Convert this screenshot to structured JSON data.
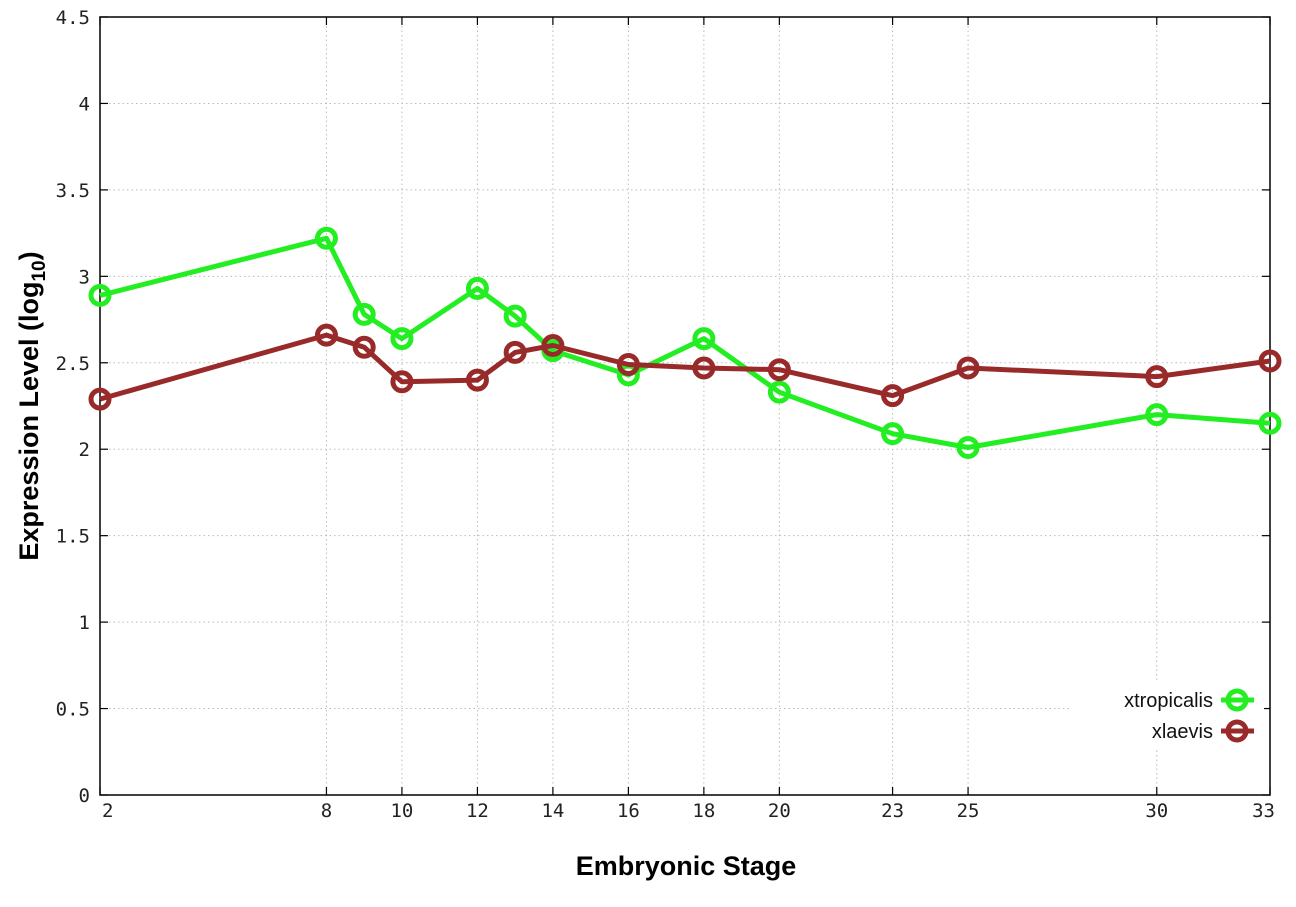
{
  "chart_data": {
    "type": "line",
    "xlabel": "Embryonic Stage",
    "ylabel": "Expression Level (log",
    "ylabel_sub": "10",
    "ylabel_end": ")",
    "x": [
      2,
      8,
      9,
      10,
      12,
      13,
      14,
      16,
      18,
      20,
      23,
      25,
      30,
      33
    ],
    "xticks": [
      2,
      8,
      10,
      12,
      14,
      16,
      18,
      20,
      23,
      25,
      30,
      33
    ],
    "xlim": [
      2,
      33
    ],
    "ylim": [
      0,
      4.5
    ],
    "yticks": [
      "0",
      "0.5",
      "1",
      "1.5",
      "2",
      "2.5",
      "3",
      "3.5",
      "4",
      "4.5"
    ],
    "grid": true,
    "legend_position": "bottom-right",
    "series": [
      {
        "name": "xtropicalis",
        "color": "#22ee22",
        "values": [
          2.89,
          3.22,
          2.78,
          2.64,
          2.93,
          2.77,
          2.57,
          2.43,
          2.64,
          2.33,
          2.09,
          2.01,
          2.2,
          2.15
        ]
      },
      {
        "name": "xlaevis",
        "color": "#992a2a",
        "values": [
          2.29,
          2.66,
          2.59,
          2.39,
          2.4,
          2.56,
          2.6,
          2.49,
          2.47,
          2.46,
          2.31,
          2.47,
          2.42,
          2.51
        ]
      }
    ]
  }
}
